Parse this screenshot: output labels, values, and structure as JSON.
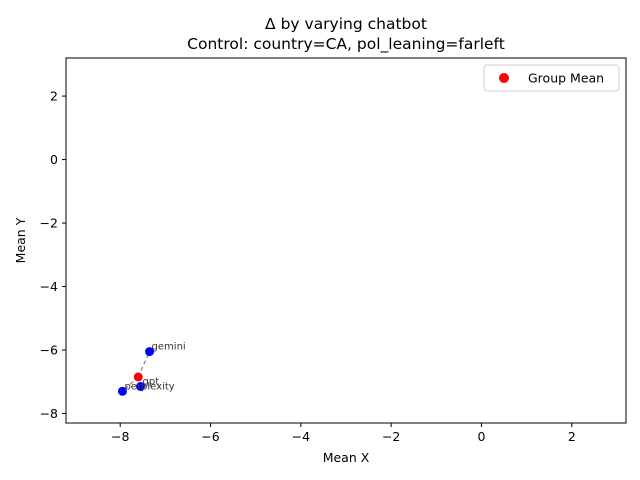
{
  "chart_data": {
    "type": "scatter",
    "title_line1": "Δ by varying chatbot",
    "title_line2": "Control: country=CA, pol_leaning=farleft",
    "xlabel": "Mean X",
    "ylabel": "Mean Y",
    "xlim": [
      -9.2,
      3.2
    ],
    "ylim": [
      -8.3,
      3.2
    ],
    "xticks": [
      -8,
      -6,
      -4,
      -2,
      0,
      2
    ],
    "yticks": [
      -8,
      -6,
      -4,
      -2,
      0,
      2
    ],
    "grid": false,
    "legend": {
      "position": "top-right",
      "entries": [
        {
          "label": "Group Mean",
          "color": "#ff0000"
        }
      ]
    },
    "points": [
      {
        "label": "gemini",
        "x": -7.35,
        "y": -6.05,
        "color": "#0000ff"
      },
      {
        "label": "gpt",
        "x": -7.55,
        "y": -7.15,
        "color": "#0000ff"
      },
      {
        "label": "perplexity",
        "x": -7.95,
        "y": -7.3,
        "color": "#0000ff"
      }
    ],
    "group_mean": {
      "x": -7.6,
      "y": -6.85,
      "color": "#ff0000"
    }
  }
}
